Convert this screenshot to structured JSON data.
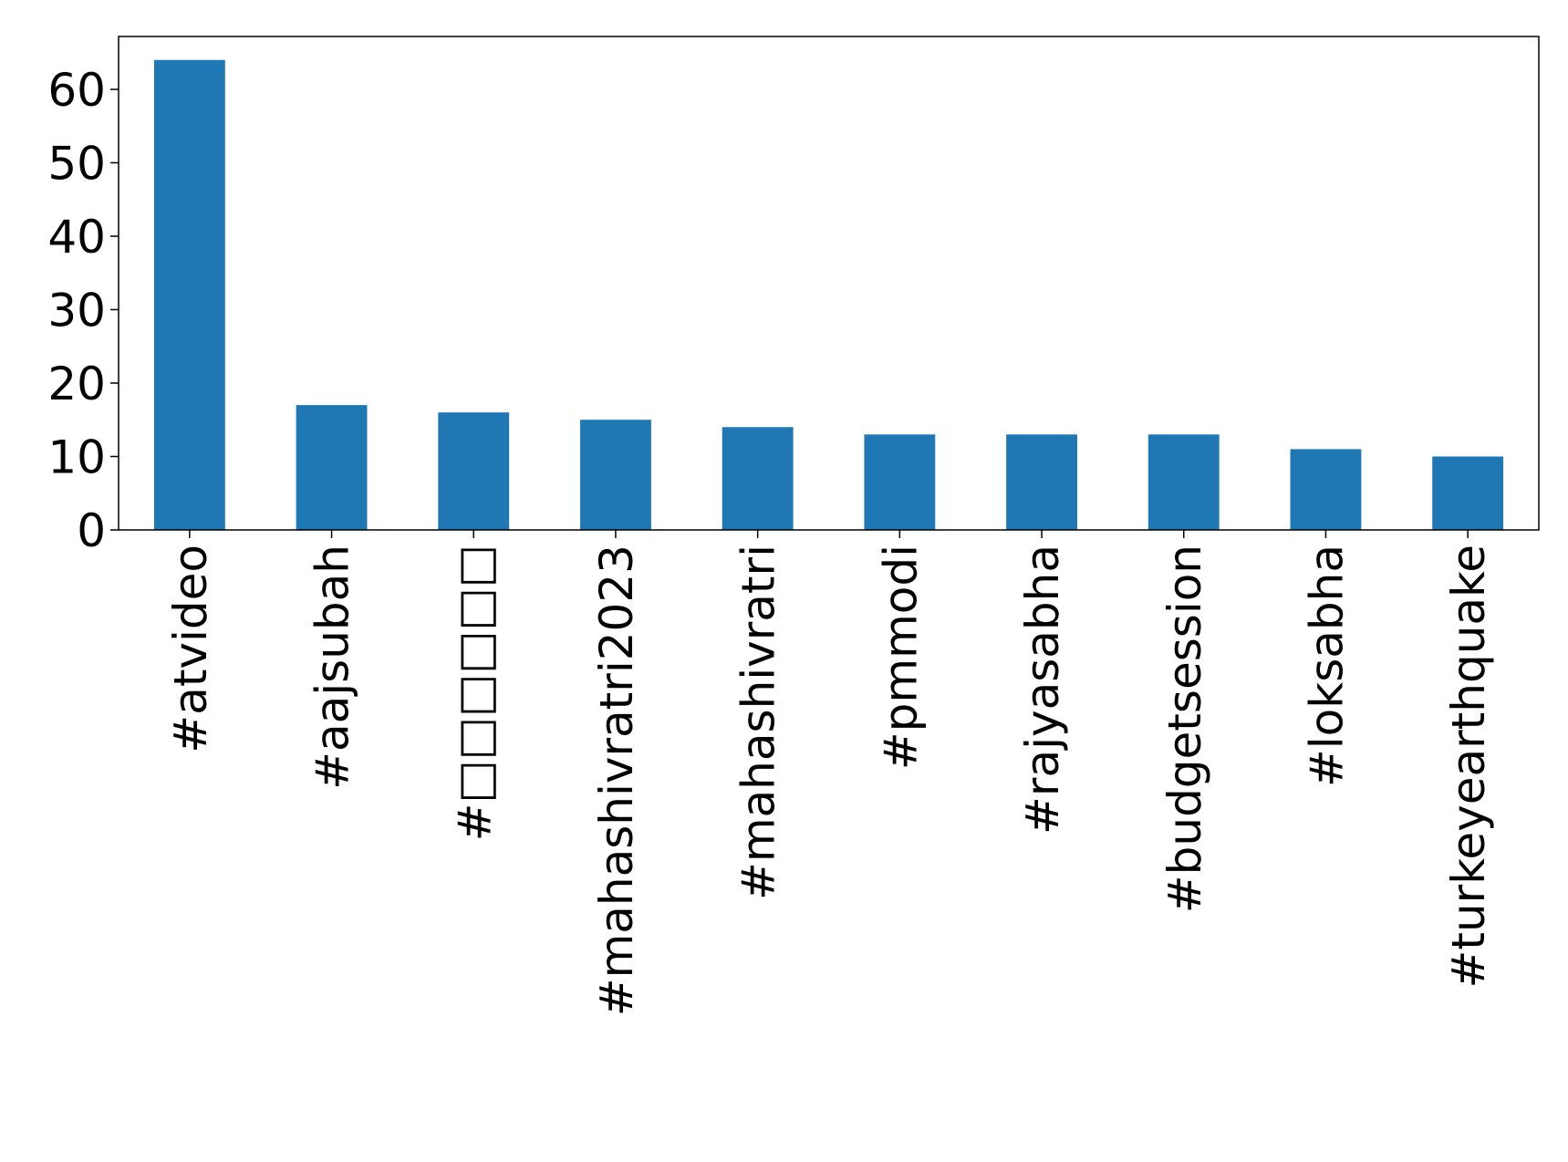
{
  "chart_data": {
    "type": "bar",
    "categories": [
      "#atvideo",
      "#aajsubah",
      "#□□□□□□",
      "#mahashivratri2023",
      "#mahashivratri",
      "#pmmodi",
      "#rajyasabha",
      "#budgetsession",
      "#loksabha",
      "#turkeyearthquake"
    ],
    "values": [
      64,
      17,
      16,
      15,
      14,
      13,
      13,
      13,
      11,
      10
    ],
    "color": "#1f77b4",
    "ylim": [
      0,
      67.2
    ],
    "yticks": [
      0,
      10,
      20,
      30,
      40,
      50,
      60
    ],
    "grid": false
  }
}
